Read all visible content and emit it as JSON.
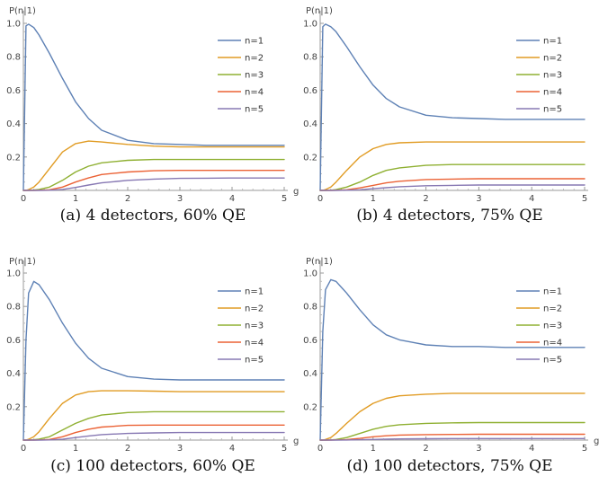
{
  "colors": [
    "#5e81b5",
    "#e19c24",
    "#8fb032",
    "#eb6235",
    "#8778b3"
  ],
  "chart_data": [
    {
      "type": "line",
      "caption": "(a) 4 detectors, 60% QE",
      "xlabel": "g",
      "ylabel": "P(n|1)",
      "xlim": [
        0,
        5
      ],
      "ylim": [
        0,
        1.0
      ],
      "xticks": [
        "0",
        "1",
        "2",
        "3",
        "4",
        "5"
      ],
      "yticks": [
        "0.2",
        "0.4",
        "0.6",
        "0.8",
        "1.0"
      ],
      "legend": "top-right",
      "x": [
        0,
        0.05,
        0.1,
        0.2,
        0.3,
        0.5,
        0.75,
        1.0,
        1.25,
        1.5,
        2.0,
        2.5,
        3.0,
        3.5,
        4.0,
        4.5,
        5.0
      ],
      "series": [
        {
          "name": "n=1",
          "values": [
            0,
            0.985,
            0.995,
            0.975,
            0.93,
            0.82,
            0.67,
            0.53,
            0.43,
            0.36,
            0.3,
            0.28,
            0.275,
            0.27,
            0.27,
            0.27,
            0.27
          ]
        },
        {
          "name": "n=2",
          "values": [
            0,
            0.0,
            0.005,
            0.02,
            0.05,
            0.13,
            0.23,
            0.28,
            0.295,
            0.29,
            0.275,
            0.265,
            0.26,
            0.26,
            0.26,
            0.26,
            0.26
          ]
        },
        {
          "name": "n=3",
          "values": [
            0,
            0,
            0.0,
            0.002,
            0.006,
            0.02,
            0.06,
            0.11,
            0.145,
            0.165,
            0.18,
            0.185,
            0.185,
            0.185,
            0.185,
            0.185,
            0.185
          ]
        },
        {
          "name": "n=4",
          "values": [
            0,
            0,
            0,
            0,
            0.001,
            0.004,
            0.02,
            0.05,
            0.075,
            0.095,
            0.11,
            0.118,
            0.12,
            0.12,
            0.12,
            0.12,
            0.12
          ]
        },
        {
          "name": "n=5",
          "values": [
            0,
            0,
            0,
            0,
            0,
            0.001,
            0.006,
            0.018,
            0.032,
            0.045,
            0.06,
            0.068,
            0.072,
            0.073,
            0.074,
            0.074,
            0.074
          ]
        }
      ]
    },
    {
      "type": "line",
      "caption": "(b) 4 detectors, 75% QE",
      "xlabel": "",
      "ylabel": "P(n|1)",
      "xlim": [
        0,
        5
      ],
      "ylim": [
        0,
        1.0
      ],
      "xticks": [
        "0",
        "1",
        "2",
        "3",
        "4",
        "5"
      ],
      "yticks": [
        "0.2",
        "0.4",
        "0.6",
        "0.8",
        "1.0"
      ],
      "legend": "top-right",
      "x": [
        0,
        0.05,
        0.1,
        0.2,
        0.3,
        0.5,
        0.75,
        1.0,
        1.25,
        1.5,
        2.0,
        2.5,
        3.0,
        3.5,
        4.0,
        4.5,
        5.0
      ],
      "series": [
        {
          "name": "n=1",
          "values": [
            0,
            0.98,
            0.995,
            0.98,
            0.95,
            0.86,
            0.74,
            0.63,
            0.55,
            0.5,
            0.45,
            0.435,
            0.43,
            0.425,
            0.425,
            0.425,
            0.425
          ]
        },
        {
          "name": "n=2",
          "values": [
            0,
            0.0,
            0.005,
            0.02,
            0.05,
            0.12,
            0.2,
            0.25,
            0.275,
            0.285,
            0.29,
            0.29,
            0.29,
            0.29,
            0.29,
            0.29,
            0.29
          ]
        },
        {
          "name": "n=3",
          "values": [
            0,
            0,
            0.0,
            0.001,
            0.005,
            0.02,
            0.05,
            0.09,
            0.12,
            0.135,
            0.15,
            0.155,
            0.155,
            0.155,
            0.155,
            0.155,
            0.155
          ]
        },
        {
          "name": "n=4",
          "values": [
            0,
            0,
            0,
            0,
            0.001,
            0.004,
            0.015,
            0.03,
            0.045,
            0.055,
            0.065,
            0.068,
            0.07,
            0.07,
            0.07,
            0.07,
            0.07
          ]
        },
        {
          "name": "n=5",
          "values": [
            0,
            0,
            0,
            0,
            0,
            0.001,
            0.004,
            0.01,
            0.016,
            0.022,
            0.028,
            0.03,
            0.032,
            0.032,
            0.032,
            0.032,
            0.032
          ]
        }
      ]
    },
    {
      "type": "line",
      "caption": "(c) 100 detectors, 60% QE",
      "xlabel": "g",
      "ylabel": "P(n|1)",
      "xlim": [
        0,
        5
      ],
      "ylim": [
        0,
        1.0
      ],
      "xticks": [
        "0",
        "1",
        "2",
        "3",
        "4",
        "5"
      ],
      "yticks": [
        "0.2",
        "0.4",
        "0.6",
        "0.8",
        "1.0"
      ],
      "legend": "top-right",
      "x": [
        0,
        0.05,
        0.1,
        0.2,
        0.3,
        0.5,
        0.75,
        1.0,
        1.25,
        1.5,
        2.0,
        2.5,
        3.0,
        3.5,
        4.0,
        4.5,
        5.0
      ],
      "series": [
        {
          "name": "n=1",
          "values": [
            0,
            0.6,
            0.88,
            0.95,
            0.93,
            0.84,
            0.7,
            0.58,
            0.49,
            0.43,
            0.38,
            0.365,
            0.36,
            0.36,
            0.36,
            0.36,
            0.36
          ]
        },
        {
          "name": "n=2",
          "values": [
            0,
            0.0,
            0.005,
            0.02,
            0.05,
            0.13,
            0.22,
            0.27,
            0.29,
            0.295,
            0.295,
            0.293,
            0.29,
            0.29,
            0.29,
            0.29,
            0.29
          ]
        },
        {
          "name": "n=3",
          "values": [
            0,
            0,
            0.0,
            0.002,
            0.006,
            0.02,
            0.06,
            0.1,
            0.13,
            0.15,
            0.165,
            0.17,
            0.17,
            0.17,
            0.17,
            0.17,
            0.17
          ]
        },
        {
          "name": "n=4",
          "values": [
            0,
            0,
            0,
            0,
            0.001,
            0.004,
            0.02,
            0.045,
            0.065,
            0.078,
            0.088,
            0.09,
            0.09,
            0.09,
            0.09,
            0.09,
            0.09
          ]
        },
        {
          "name": "n=5",
          "values": [
            0,
            0,
            0,
            0,
            0,
            0.001,
            0.005,
            0.015,
            0.025,
            0.033,
            0.04,
            0.043,
            0.045,
            0.045,
            0.045,
            0.045,
            0.045
          ]
        }
      ]
    },
    {
      "type": "line",
      "caption": "(d) 100 detectors, 75% QE",
      "xlabel": "g",
      "ylabel": "P(n|1)",
      "xlim": [
        0,
        5
      ],
      "ylim": [
        0,
        1.0
      ],
      "xticks": [
        "0",
        "1",
        "2",
        "3",
        "4",
        "5"
      ],
      "yticks": [
        "0.2",
        "0.4",
        "0.6",
        "0.8",
        "1.0"
      ],
      "legend": "top-right",
      "x": [
        0,
        0.05,
        0.1,
        0.2,
        0.3,
        0.5,
        0.75,
        1.0,
        1.25,
        1.5,
        2.0,
        2.5,
        3.0,
        3.5,
        4.0,
        4.5,
        5.0
      ],
      "series": [
        {
          "name": "n=1",
          "values": [
            0,
            0.65,
            0.9,
            0.96,
            0.95,
            0.88,
            0.78,
            0.69,
            0.63,
            0.6,
            0.57,
            0.56,
            0.56,
            0.555,
            0.555,
            0.555,
            0.555
          ]
        },
        {
          "name": "n=2",
          "values": [
            0,
            0.0,
            0.004,
            0.015,
            0.04,
            0.1,
            0.17,
            0.22,
            0.25,
            0.265,
            0.275,
            0.28,
            0.28,
            0.28,
            0.28,
            0.28,
            0.28
          ]
        },
        {
          "name": "n=3",
          "values": [
            0,
            0,
            0.0,
            0.001,
            0.004,
            0.015,
            0.04,
            0.065,
            0.082,
            0.092,
            0.1,
            0.103,
            0.105,
            0.105,
            0.105,
            0.105,
            0.105
          ]
        },
        {
          "name": "n=4",
          "values": [
            0,
            0,
            0,
            0,
            0.001,
            0.003,
            0.01,
            0.02,
            0.026,
            0.03,
            0.033,
            0.034,
            0.035,
            0.035,
            0.035,
            0.035,
            0.035
          ]
        },
        {
          "name": "n=5",
          "values": [
            0,
            0,
            0,
            0,
            0,
            0.0005,
            0.002,
            0.004,
            0.006,
            0.007,
            0.008,
            0.009,
            0.009,
            0.009,
            0.009,
            0.009,
            0.009
          ]
        }
      ]
    }
  ]
}
